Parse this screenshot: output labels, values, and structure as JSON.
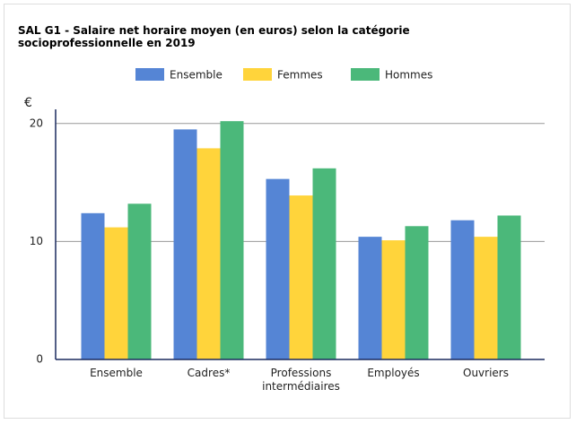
{
  "chart_data": {
    "type": "bar",
    "title": "SAL G1 - Salaire net horaire moyen (en euros) selon la catégorie socioprofessionnelle en 2019",
    "y_label": "€",
    "categories": [
      "Ensemble",
      "Cadres*",
      "Professions intermédiaires",
      "Employés",
      "Ouvriers"
    ],
    "series": [
      {
        "name": "Ensemble",
        "color": "#5585d5",
        "values": [
          12.4,
          19.5,
          15.3,
          10.4,
          11.8
        ]
      },
      {
        "name": "Femmes",
        "color": "#ffd43b",
        "values": [
          11.2,
          17.9,
          13.9,
          10.1,
          10.4
        ]
      },
      {
        "name": "Hommes",
        "color": "#4bb87a",
        "values": [
          13.2,
          20.2,
          16.2,
          11.3,
          12.2
        ]
      }
    ],
    "ylim": [
      0,
      21.2
    ],
    "yticks": [
      0,
      10,
      20
    ],
    "grid": true,
    "legend": "top"
  }
}
